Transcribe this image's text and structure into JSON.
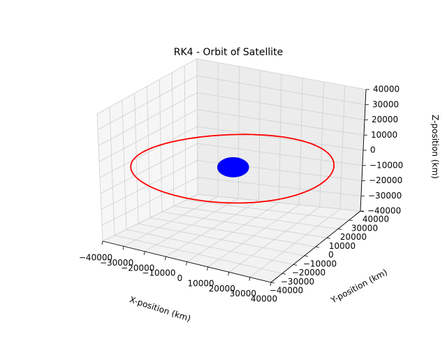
{
  "chart_data": {
    "type": "scatter",
    "projection": "3d",
    "title": "RK4 - Orbit of Satellite",
    "xlabel": "X-position (km)",
    "ylabel": "Y-position (km)",
    "zlabel": "Z-position (km)",
    "xlim": [
      -40000,
      40000
    ],
    "ylim": [
      -40000,
      40000
    ],
    "zlim": [
      -40000,
      40000
    ],
    "x_ticks": [
      -40000,
      -30000,
      -20000,
      -10000,
      0,
      10000,
      20000,
      30000,
      40000
    ],
    "y_ticks": [
      -40000,
      -30000,
      -20000,
      -10000,
      0,
      10000,
      20000,
      30000,
      40000
    ],
    "z_ticks": [
      -40000,
      -30000,
      -20000,
      -10000,
      0,
      10000,
      20000,
      30000,
      40000
    ],
    "x_tick_labels": [
      "−40000",
      "−30000",
      "−20000",
      "−10000",
      "0",
      "10000",
      "20000",
      "30000",
      "40000"
    ],
    "y_tick_labels": [
      "−40000",
      "−30000",
      "−20000",
      "−10000",
      "0",
      "10000",
      "20000",
      "30000",
      "40000"
    ],
    "z_tick_labels": [
      "−40000",
      "−30000",
      "−20000",
      "−10000",
      "0",
      "10000",
      "20000",
      "30000",
      "40000"
    ],
    "grid": true,
    "series": [
      {
        "kind": "orbit-line",
        "color": "#ff0000",
        "shape": "circle",
        "center": [
          0,
          0,
          0
        ],
        "radius": 42000,
        "plane": "xy"
      },
      {
        "kind": "sphere",
        "color": "#0000ff",
        "center": [
          0,
          0,
          0
        ],
        "radius": 6371
      }
    ]
  }
}
